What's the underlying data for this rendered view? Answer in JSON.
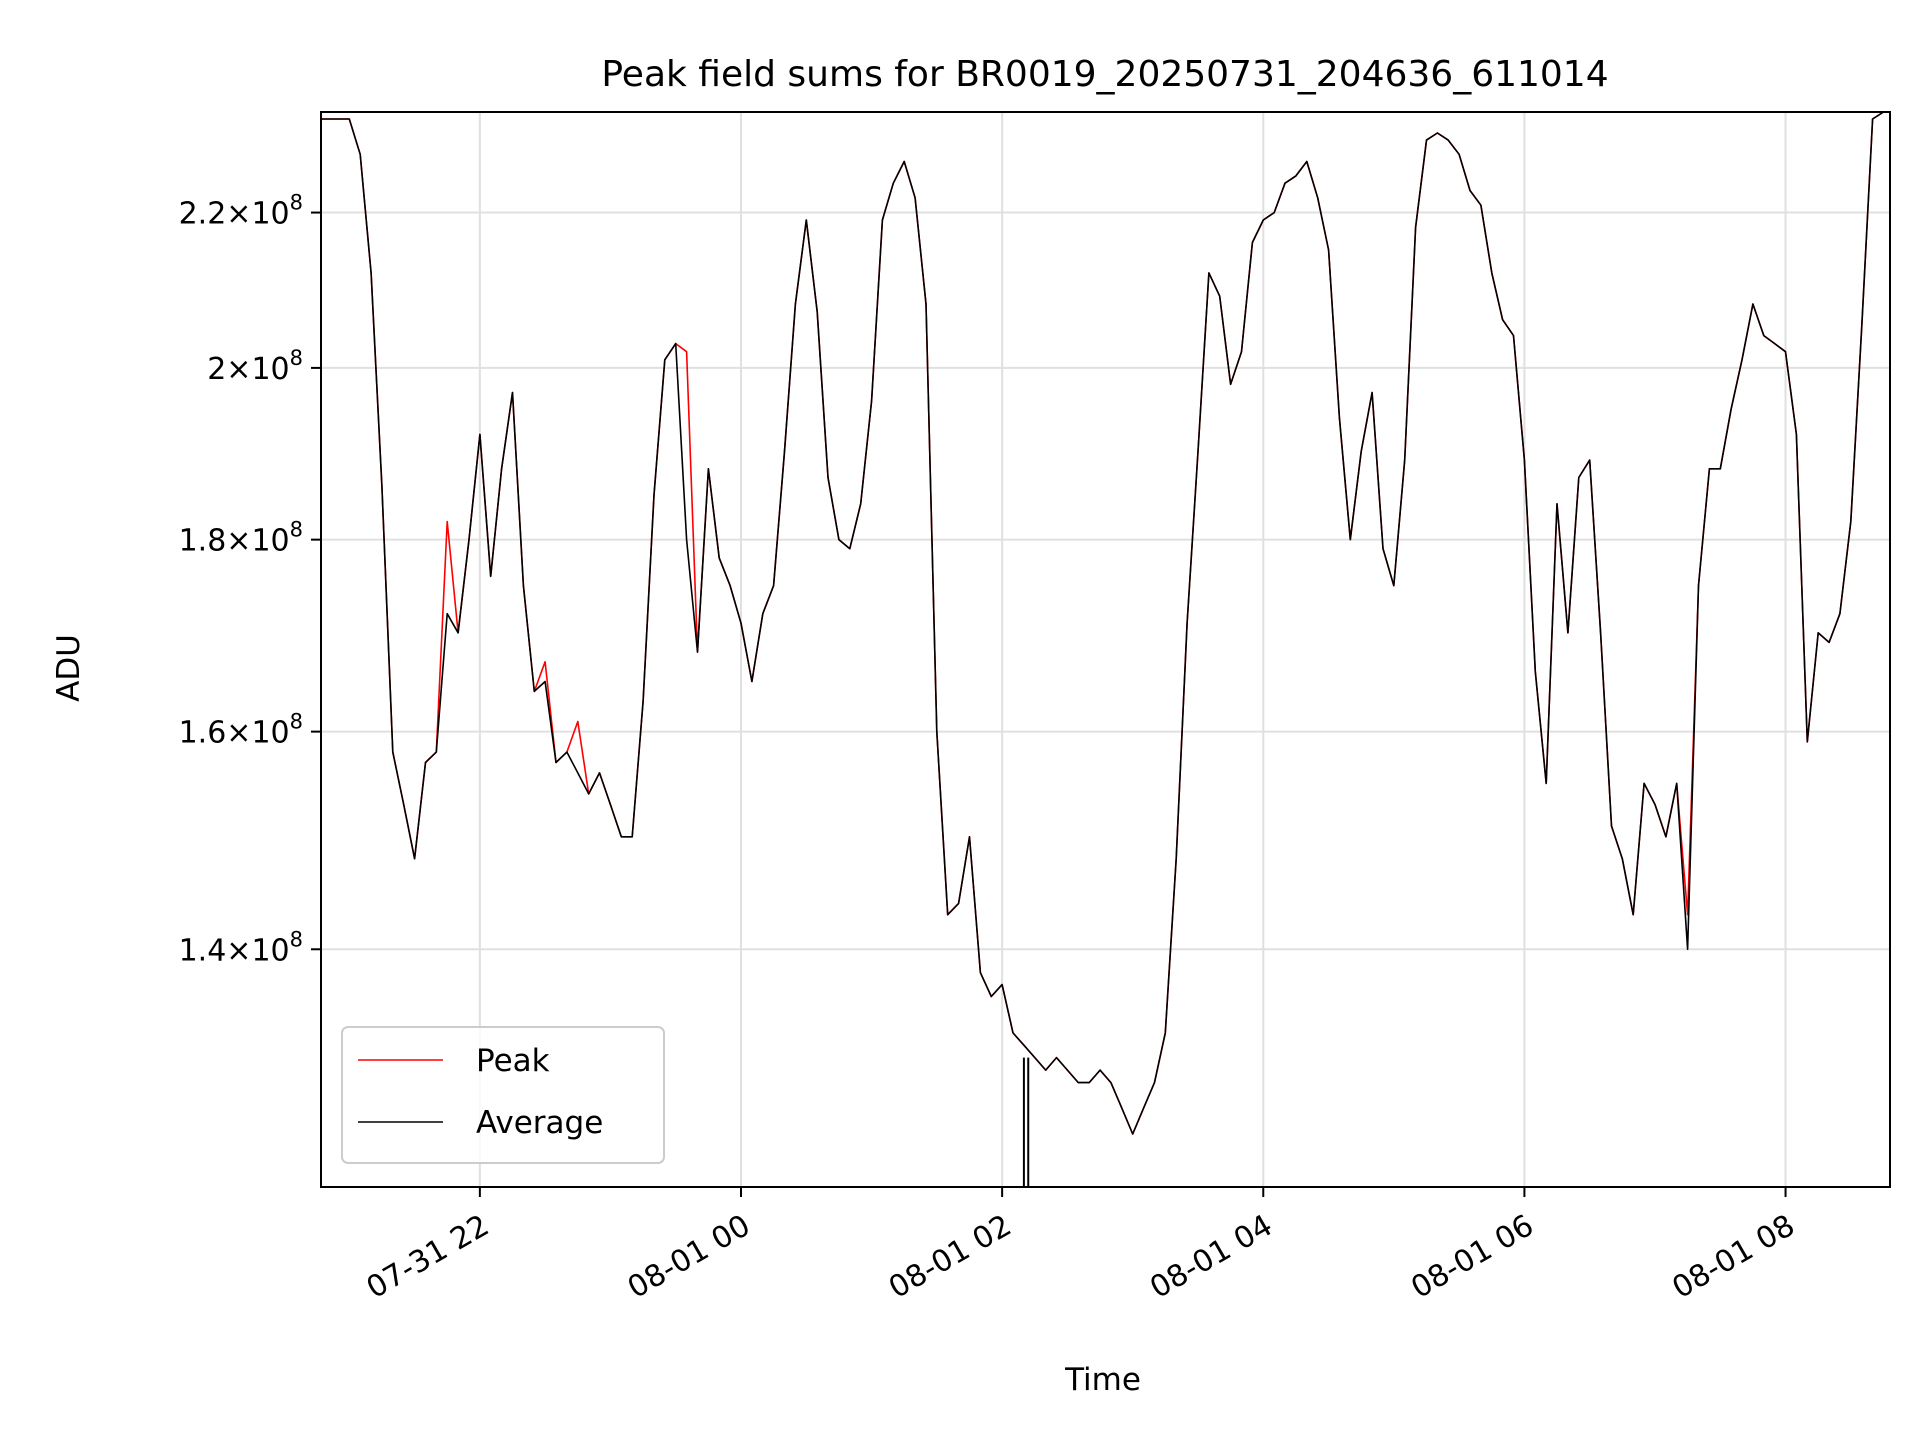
{
  "chart_data": {
    "type": "line",
    "title": "Peak field sums for BR0019_20250731_204636_611014",
    "xlabel": "Time",
    "ylabel": "ADU",
    "y_scale": "log",
    "grid": true,
    "legend_position": "lower-left",
    "x_range": [
      "2025-07-31 20:47",
      "2025-08-01 08:48"
    ],
    "y_range": [
      121000000,
      234000000
    ],
    "x_ticks": [
      {
        "t": "2025-07-31 22:00",
        "label": "07-31 22"
      },
      {
        "t": "2025-08-01 00:00",
        "label": "08-01 00"
      },
      {
        "t": "2025-08-01 02:00",
        "label": "08-01 02"
      },
      {
        "t": "2025-08-01 04:00",
        "label": "08-01 04"
      },
      {
        "t": "2025-08-01 06:00",
        "label": "08-01 06"
      },
      {
        "t": "2025-08-01 08:00",
        "label": "08-01 08"
      }
    ],
    "y_ticks": [
      {
        "v": 140000000,
        "mant": "1.4",
        "exp": "8"
      },
      {
        "v": 160000000,
        "mant": "1.6",
        "exp": "8"
      },
      {
        "v": 180000000,
        "mant": "1.8",
        "exp": "8"
      },
      {
        "v": 200000000,
        "mant": "2",
        "exp": "8"
      },
      {
        "v": 220000000,
        "mant": "2.2",
        "exp": "8"
      }
    ],
    "series": [
      {
        "name": "Average",
        "color": "#000000",
        "x": [
          "2025-07-31 20:47",
          "2025-07-31 21:00",
          "2025-07-31 21:05",
          "2025-07-31 21:10",
          "2025-07-31 21:15",
          "2025-07-31 21:20",
          "2025-07-31 21:25",
          "2025-07-31 21:30",
          "2025-07-31 21:35",
          "2025-07-31 21:40",
          "2025-07-31 21:45",
          "2025-07-31 21:50",
          "2025-07-31 21:55",
          "2025-07-31 22:00",
          "2025-07-31 22:05",
          "2025-07-31 22:10",
          "2025-07-31 22:15",
          "2025-07-31 22:20",
          "2025-07-31 22:25",
          "2025-07-31 22:30",
          "2025-07-31 22:35",
          "2025-07-31 22:40",
          "2025-07-31 22:45",
          "2025-07-31 22:50",
          "2025-07-31 22:55",
          "2025-07-31 23:00",
          "2025-07-31 23:05",
          "2025-07-31 23:10",
          "2025-07-31 23:15",
          "2025-07-31 23:20",
          "2025-07-31 23:25",
          "2025-07-31 23:30",
          "2025-07-31 23:35",
          "2025-07-31 23:40",
          "2025-07-31 23:45",
          "2025-07-31 23:50",
          "2025-07-31 23:55",
          "2025-08-01 00:00",
          "2025-08-01 00:05",
          "2025-08-01 00:10",
          "2025-08-01 00:15",
          "2025-08-01 00:20",
          "2025-08-01 00:25",
          "2025-08-01 00:30",
          "2025-08-01 00:35",
          "2025-08-01 00:40",
          "2025-08-01 00:45",
          "2025-08-01 00:50",
          "2025-08-01 00:55",
          "2025-08-01 01:00",
          "2025-08-01 01:05",
          "2025-08-01 01:10",
          "2025-08-01 01:15",
          "2025-08-01 01:20",
          "2025-08-01 01:25",
          "2025-08-01 01:30",
          "2025-08-01 01:35",
          "2025-08-01 01:40",
          "2025-08-01 01:45",
          "2025-08-01 01:50",
          "2025-08-01 01:55",
          "2025-08-01 02:00",
          "2025-08-01 02:05",
          "2025-08-01 02:10",
          "2025-08-01 02:15",
          "2025-08-01 02:20",
          "2025-08-01 02:25",
          "2025-08-01 02:30",
          "2025-08-01 02:35",
          "2025-08-01 02:40",
          "2025-08-01 02:45",
          "2025-08-01 02:50",
          "2025-08-01 02:55",
          "2025-08-01 03:00",
          "2025-08-01 03:05",
          "2025-08-01 03:10",
          "2025-08-01 03:15",
          "2025-08-01 03:20",
          "2025-08-01 03:25",
          "2025-08-01 03:30",
          "2025-08-01 03:35",
          "2025-08-01 03:40",
          "2025-08-01 03:45",
          "2025-08-01 03:50",
          "2025-08-01 03:55",
          "2025-08-01 04:00",
          "2025-08-01 04:05",
          "2025-08-01 04:10",
          "2025-08-01 04:15",
          "2025-08-01 04:20",
          "2025-08-01 04:25",
          "2025-08-01 04:30",
          "2025-08-01 04:35",
          "2025-08-01 04:40",
          "2025-08-01 04:45",
          "2025-08-01 04:50",
          "2025-08-01 04:55",
          "2025-08-01 05:00",
          "2025-08-01 05:05",
          "2025-08-01 05:10",
          "2025-08-01 05:15",
          "2025-08-01 05:20",
          "2025-08-01 05:25",
          "2025-08-01 05:30",
          "2025-08-01 05:35",
          "2025-08-01 05:40",
          "2025-08-01 05:45",
          "2025-08-01 05:50",
          "2025-08-01 05:55",
          "2025-08-01 06:00",
          "2025-08-01 06:05",
          "2025-08-01 06:10",
          "2025-08-01 06:15",
          "2025-08-01 06:20",
          "2025-08-01 06:25",
          "2025-08-01 06:30",
          "2025-08-01 06:35",
          "2025-08-01 06:40",
          "2025-08-01 06:45",
          "2025-08-01 06:50",
          "2025-08-01 06:55",
          "2025-08-01 07:00",
          "2025-08-01 07:05",
          "2025-08-01 07:10",
          "2025-08-01 07:15",
          "2025-08-01 07:20",
          "2025-08-01 07:25",
          "2025-08-01 07:30",
          "2025-08-01 07:35",
          "2025-08-01 07:40",
          "2025-08-01 07:45",
          "2025-08-01 07:50",
          "2025-08-01 07:55",
          "2025-08-01 08:00",
          "2025-08-01 08:05",
          "2025-08-01 08:10",
          "2025-08-01 08:15",
          "2025-08-01 08:20",
          "2025-08-01 08:25",
          "2025-08-01 08:30",
          "2025-08-01 08:35",
          "2025-08-01 08:40",
          "2025-08-01 08:45"
        ],
        "y": [
          233000000,
          233000000,
          228000000,
          212000000,
          186000000,
          158000000,
          153000000,
          148000000,
          157000000,
          158000000,
          172000000,
          170000000,
          180000000,
          192000000,
          176000000,
          188000000,
          197000000,
          175000000,
          164000000,
          165000000,
          157000000,
          158000000,
          156000000,
          154000000,
          156000000,
          153000000,
          150000000,
          150000000,
          163000000,
          185000000,
          201000000,
          203000000,
          180000000,
          168000000,
          188000000,
          178000000,
          175000000,
          171000000,
          165000000,
          172000000,
          175000000,
          190000000,
          208000000,
          219000000,
          207000000,
          187000000,
          180000000,
          179000000,
          184000000,
          196000000,
          219000000,
          224000000,
          227000000,
          222000000,
          208000000,
          160000000,
          143000000,
          144000000,
          150000000,
          138000000,
          136000000,
          137000000,
          133000000,
          132000000,
          131000000,
          130000000,
          131000000,
          130000000,
          129000000,
          129000000,
          130000000,
          129000000,
          127000000,
          125000000,
          127000000,
          129000000,
          133000000,
          148000000,
          171000000,
          190000000,
          212000000,
          209000000,
          198000000,
          202000000,
          216000000,
          219000000,
          220000000,
          224000000,
          225000000,
          227000000,
          222000000,
          215000000,
          194000000,
          180000000,
          190000000,
          197000000,
          179000000,
          175000000,
          189000000,
          218000000,
          230000000,
          231000000,
          230000000,
          228000000,
          223000000,
          221000000,
          212000000,
          206000000,
          204000000,
          189000000,
          166000000,
          155000000,
          184000000,
          170000000,
          187000000,
          189000000,
          170000000,
          151000000,
          148000000,
          143000000,
          155000000,
          153000000,
          150000000,
          155000000,
          140000000,
          175000000,
          188000000,
          188000000,
          195000000,
          201000000,
          208000000,
          204000000,
          203000000,
          202000000,
          192000000,
          159000000,
          170000000,
          169000000,
          172000000,
          182000000,
          205000000,
          233000000,
          234000000
        ]
      },
      {
        "name": "Peak",
        "color": "#ff0000",
        "x": [
          "2025-07-31 20:47",
          "2025-07-31 21:00",
          "2025-07-31 21:05",
          "2025-07-31 21:10",
          "2025-07-31 21:15",
          "2025-07-31 21:20",
          "2025-07-31 21:25",
          "2025-07-31 21:30",
          "2025-07-31 21:35",
          "2025-07-31 21:40",
          "2025-07-31 21:45",
          "2025-07-31 21:50",
          "2025-07-31 21:55",
          "2025-07-31 22:00",
          "2025-07-31 22:05",
          "2025-07-31 22:10",
          "2025-07-31 22:15",
          "2025-07-31 22:20",
          "2025-07-31 22:25",
          "2025-07-31 22:30",
          "2025-07-31 22:35",
          "2025-07-31 22:40",
          "2025-07-31 22:45",
          "2025-07-31 22:50",
          "2025-07-31 22:55",
          "2025-07-31 23:00",
          "2025-07-31 23:05",
          "2025-07-31 23:10",
          "2025-07-31 23:15",
          "2025-07-31 23:20",
          "2025-07-31 23:25",
          "2025-07-31 23:30",
          "2025-07-31 23:35",
          "2025-07-31 23:40",
          "2025-07-31 23:45",
          "2025-07-31 23:50",
          "2025-07-31 23:55",
          "2025-08-01 00:00",
          "2025-08-01 00:05",
          "2025-08-01 00:10",
          "2025-08-01 00:15",
          "2025-08-01 00:20",
          "2025-08-01 00:25",
          "2025-08-01 00:30",
          "2025-08-01 00:35",
          "2025-08-01 00:40",
          "2025-08-01 00:45",
          "2025-08-01 00:50",
          "2025-08-01 00:55",
          "2025-08-01 01:00",
          "2025-08-01 01:05",
          "2025-08-01 01:10",
          "2025-08-01 01:15",
          "2025-08-01 01:20",
          "2025-08-01 01:25",
          "2025-08-01 01:30",
          "2025-08-01 01:35",
          "2025-08-01 01:40",
          "2025-08-01 01:45",
          "2025-08-01 01:50",
          "2025-08-01 01:55",
          "2025-08-01 02:00",
          "2025-08-01 02:05",
          "2025-08-01 02:10",
          "2025-08-01 02:15",
          "2025-08-01 02:20",
          "2025-08-01 02:25",
          "2025-08-01 02:30",
          "2025-08-01 02:35",
          "2025-08-01 02:40",
          "2025-08-01 02:45",
          "2025-08-01 02:50",
          "2025-08-01 02:55",
          "2025-08-01 03:00",
          "2025-08-01 03:05",
          "2025-08-01 03:10",
          "2025-08-01 03:15",
          "2025-08-01 03:20",
          "2025-08-01 03:25",
          "2025-08-01 03:30",
          "2025-08-01 03:35",
          "2025-08-01 03:40",
          "2025-08-01 03:45",
          "2025-08-01 03:50",
          "2025-08-01 03:55",
          "2025-08-01 04:00",
          "2025-08-01 04:05",
          "2025-08-01 04:10",
          "2025-08-01 04:15",
          "2025-08-01 04:20",
          "2025-08-01 04:25",
          "2025-08-01 04:30",
          "2025-08-01 04:35",
          "2025-08-01 04:40",
          "2025-08-01 04:45",
          "2025-08-01 04:50",
          "2025-08-01 04:55",
          "2025-08-01 05:00",
          "2025-08-01 05:05",
          "2025-08-01 05:10",
          "2025-08-01 05:15",
          "2025-08-01 05:20",
          "2025-08-01 05:25",
          "2025-08-01 05:30",
          "2025-08-01 05:35",
          "2025-08-01 05:40",
          "2025-08-01 05:45",
          "2025-08-01 05:50",
          "2025-08-01 05:55",
          "2025-08-01 06:00",
          "2025-08-01 06:05",
          "2025-08-01 06:10",
          "2025-08-01 06:15",
          "2025-08-01 06:20",
          "2025-08-01 06:25",
          "2025-08-01 06:30",
          "2025-08-01 06:35",
          "2025-08-01 06:40",
          "2025-08-01 06:45",
          "2025-08-01 06:50",
          "2025-08-01 06:55",
          "2025-08-01 07:00",
          "2025-08-01 07:05",
          "2025-08-01 07:10",
          "2025-08-01 07:15",
          "2025-08-01 07:20",
          "2025-08-01 07:25",
          "2025-08-01 07:30",
          "2025-08-01 07:35",
          "2025-08-01 07:40",
          "2025-08-01 07:45",
          "2025-08-01 07:50",
          "2025-08-01 07:55",
          "2025-08-01 08:00",
          "2025-08-01 08:05",
          "2025-08-01 08:10",
          "2025-08-01 08:15",
          "2025-08-01 08:20",
          "2025-08-01 08:25",
          "2025-08-01 08:30",
          "2025-08-01 08:35",
          "2025-08-01 08:40",
          "2025-08-01 08:45"
        ],
        "y": [
          233000000,
          233000000,
          228000000,
          212000000,
          186000000,
          158000000,
          153000000,
          148000000,
          157000000,
          158000000,
          182000000,
          170000000,
          180000000,
          192000000,
          176000000,
          188000000,
          197000000,
          175000000,
          164000000,
          167000000,
          157000000,
          158000000,
          161000000,
          154000000,
          156000000,
          153000000,
          150000000,
          150000000,
          163000000,
          185000000,
          201000000,
          203000000,
          202000000,
          168000000,
          188000000,
          178000000,
          175000000,
          171000000,
          165000000,
          172000000,
          175000000,
          190000000,
          208000000,
          219000000,
          207000000,
          187000000,
          180000000,
          179000000,
          184000000,
          196000000,
          219000000,
          224000000,
          227000000,
          222000000,
          208000000,
          160000000,
          143000000,
          144000000,
          150000000,
          138000000,
          136000000,
          137000000,
          133000000,
          132000000,
          131000000,
          130000000,
          131000000,
          130000000,
          129000000,
          129000000,
          130000000,
          129000000,
          127000000,
          125000000,
          127000000,
          129000000,
          133000000,
          148000000,
          171000000,
          190000000,
          212000000,
          209000000,
          198000000,
          202000000,
          216000000,
          219000000,
          220000000,
          224000000,
          225000000,
          227000000,
          222000000,
          215000000,
          194000000,
          180000000,
          190000000,
          197000000,
          179000000,
          175000000,
          189000000,
          218000000,
          230000000,
          231000000,
          230000000,
          228000000,
          223000000,
          221000000,
          212000000,
          206000000,
          204000000,
          189000000,
          166000000,
          155000000,
          184000000,
          170000000,
          187000000,
          189000000,
          170000000,
          151000000,
          148000000,
          143000000,
          155000000,
          153000000,
          150000000,
          155000000,
          143000000,
          175000000,
          188000000,
          188000000,
          195000000,
          201000000,
          208000000,
          204000000,
          203000000,
          202000000,
          192000000,
          159000000,
          170000000,
          169000000,
          172000000,
          182000000,
          205000000,
          233000000,
          234000000
        ]
      }
    ],
    "vertical_spikes": [
      {
        "series": "Average",
        "t": "2025-08-01 02:10",
        "low": 121000000,
        "high": 131000000
      },
      {
        "series": "Average",
        "t": "2025-08-01 02:12",
        "low": 121000000,
        "high": 131000000
      }
    ]
  }
}
